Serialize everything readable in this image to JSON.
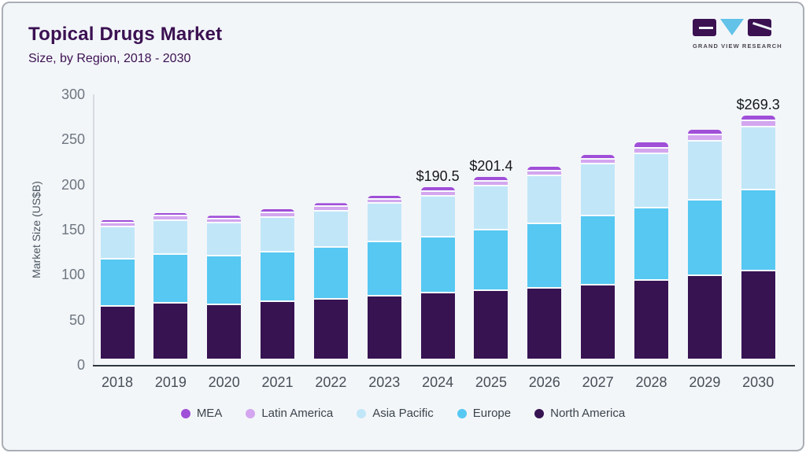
{
  "header": {
    "title": "Topical Drugs Market",
    "subtitle": "Size, by Region, 2018 - 2030"
  },
  "logo": {
    "brand": "GRAND VIEW RESEARCH",
    "colors": {
      "block": "#3b1152",
      "triangle": "#62c2e8"
    }
  },
  "chart_data": {
    "type": "bar",
    "stacked": true,
    "title": "Topical Drugs Market",
    "subtitle": "Size, by Region, 2018 - 2030",
    "xlabel": "",
    "ylabel": "Market Size (US$B)",
    "ylim": [
      0,
      300
    ],
    "yticks": [
      0,
      50,
      100,
      150,
      200,
      250,
      300
    ],
    "grid": false,
    "legend_position": "bottom",
    "categories": [
      2018,
      2019,
      2020,
      2021,
      2022,
      2023,
      2024,
      2025,
      2026,
      2027,
      2028,
      2029,
      2030
    ],
    "series": [
      {
        "name": "North America",
        "color": "#371352",
        "values": [
          57.5,
          61,
          59.5,
          62.5,
          65,
          68.5,
          72,
          75,
          78,
          81.5,
          86.5,
          92,
          97
        ]
      },
      {
        "name": "Europe",
        "color": "#56c8f2",
        "values": [
          52,
          54.5,
          54,
          55,
          58,
          60.5,
          62.5,
          67,
          71,
          76,
          80,
          83.5,
          89.5
        ]
      },
      {
        "name": "Asia Pacific",
        "color": "#c1e6f8",
        "values": [
          36,
          37.5,
          36.5,
          39,
          40.5,
          42.5,
          45.5,
          49,
          53,
          57.5,
          60,
          65,
          69.5
        ]
      },
      {
        "name": "Latin America",
        "color": "#d3a6ef",
        "values": [
          4.5,
          4.5,
          4.5,
          5,
          4.5,
          4.5,
          5,
          5,
          5.5,
          5.5,
          6.5,
          7,
          7.5
        ]
      },
      {
        "name": "MEA",
        "color": "#a04fd8",
        "values": [
          3.5,
          4,
          4,
          4.5,
          4.5,
          5,
          5.5,
          5.4,
          5.5,
          5.5,
          6.5,
          6,
          5.8
        ]
      }
    ],
    "annotations": [
      {
        "year": 2024,
        "label": "$190.5"
      },
      {
        "year": 2025,
        "label": "$201.4"
      },
      {
        "year": 2030,
        "label": "$269.3"
      }
    ],
    "legend_order": [
      "MEA",
      "Latin America",
      "Asia Pacific",
      "Europe",
      "North America"
    ]
  }
}
